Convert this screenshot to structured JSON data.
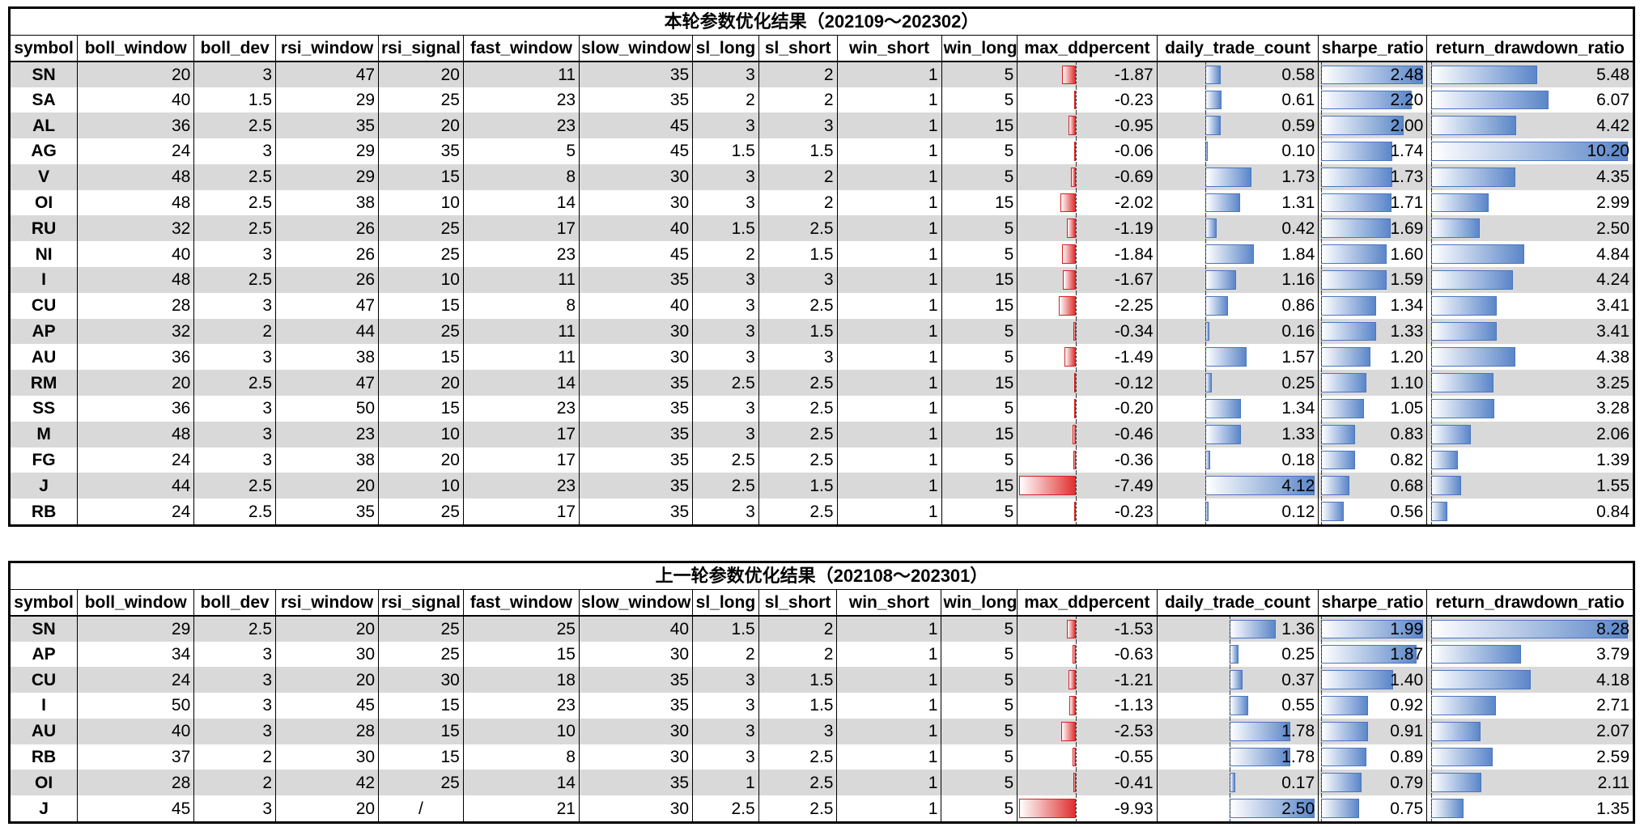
{
  "columns": [
    "symbol",
    "boll_window",
    "boll_dev",
    "rsi_window",
    "rsi_signal",
    "fast_window",
    "slow_window",
    "sl_long",
    "sl_short",
    "win_short",
    "win_long",
    "max_ddpercent",
    "daily_trade_count",
    "sharpe_ratio",
    "return_drawdown_ratio"
  ],
  "tables": [
    {
      "title": "本轮参数优化结果（202109～202302）",
      "rows": [
        [
          "SN",
          "20",
          "3",
          "47",
          "20",
          "11",
          "35",
          "3",
          "2",
          "1",
          "5",
          "-1.87",
          "0.58",
          "2.48",
          "5.48"
        ],
        [
          "SA",
          "40",
          "1.5",
          "29",
          "25",
          "23",
          "35",
          "2",
          "2",
          "1",
          "5",
          "-0.23",
          "0.61",
          "2.20",
          "6.07"
        ],
        [
          "AL",
          "36",
          "2.5",
          "35",
          "20",
          "23",
          "45",
          "3",
          "3",
          "1",
          "15",
          "-0.95",
          "0.59",
          "2.00",
          "4.42"
        ],
        [
          "AG",
          "24",
          "3",
          "29",
          "35",
          "5",
          "45",
          "1.5",
          "1.5",
          "1",
          "5",
          "-0.06",
          "0.10",
          "1.74",
          "10.20"
        ],
        [
          "V",
          "48",
          "2.5",
          "29",
          "15",
          "8",
          "30",
          "3",
          "2",
          "1",
          "5",
          "-0.69",
          "1.73",
          "1.73",
          "4.35"
        ],
        [
          "OI",
          "48",
          "2.5",
          "38",
          "10",
          "14",
          "30",
          "3",
          "2",
          "1",
          "15",
          "-2.02",
          "1.31",
          "1.71",
          "2.99"
        ],
        [
          "RU",
          "32",
          "2.5",
          "26",
          "25",
          "17",
          "40",
          "1.5",
          "2.5",
          "1",
          "5",
          "-1.19",
          "0.42",
          "1.69",
          "2.50"
        ],
        [
          "NI",
          "40",
          "3",
          "26",
          "25",
          "23",
          "45",
          "2",
          "1.5",
          "1",
          "5",
          "-1.84",
          "1.84",
          "1.60",
          "4.84"
        ],
        [
          "I",
          "48",
          "2.5",
          "26",
          "10",
          "11",
          "35",
          "3",
          "3",
          "1",
          "15",
          "-1.67",
          "1.16",
          "1.59",
          "4.24"
        ],
        [
          "CU",
          "28",
          "3",
          "47",
          "15",
          "8",
          "40",
          "3",
          "2.5",
          "1",
          "15",
          "-2.25",
          "0.86",
          "1.34",
          "3.41"
        ],
        [
          "AP",
          "32",
          "2",
          "44",
          "25",
          "11",
          "30",
          "3",
          "1.5",
          "1",
          "5",
          "-0.34",
          "0.16",
          "1.33",
          "3.41"
        ],
        [
          "AU",
          "36",
          "3",
          "38",
          "15",
          "11",
          "30",
          "3",
          "3",
          "1",
          "5",
          "-1.49",
          "1.57",
          "1.20",
          "4.38"
        ],
        [
          "RM",
          "20",
          "2.5",
          "47",
          "20",
          "14",
          "35",
          "2.5",
          "2.5",
          "1",
          "15",
          "-0.12",
          "0.25",
          "1.10",
          "3.25"
        ],
        [
          "SS",
          "36",
          "3",
          "50",
          "15",
          "23",
          "35",
          "3",
          "2.5",
          "1",
          "5",
          "-0.20",
          "1.34",
          "1.05",
          "3.28"
        ],
        [
          "M",
          "48",
          "3",
          "23",
          "10",
          "17",
          "35",
          "3",
          "2.5",
          "1",
          "15",
          "-0.46",
          "1.33",
          "0.83",
          "2.06"
        ],
        [
          "FG",
          "24",
          "3",
          "38",
          "20",
          "17",
          "35",
          "2.5",
          "2.5",
          "1",
          "5",
          "-0.36",
          "0.18",
          "0.82",
          "1.39"
        ],
        [
          "J",
          "44",
          "2.5",
          "20",
          "10",
          "23",
          "35",
          "2.5",
          "1.5",
          "1",
          "15",
          "-7.49",
          "4.12",
          "0.68",
          "1.55"
        ],
        [
          "RB",
          "24",
          "2.5",
          "35",
          "25",
          "17",
          "35",
          "3",
          "2.5",
          "1",
          "5",
          "-0.23",
          "0.12",
          "0.56",
          "0.84"
        ]
      ]
    },
    {
      "title": "上一轮参数优化结果（202108～202301）",
      "rows": [
        [
          "SN",
          "29",
          "2.5",
          "20",
          "25",
          "25",
          "40",
          "1.5",
          "2",
          "1",
          "5",
          "-1.53",
          "1.36",
          "1.99",
          "8.28"
        ],
        [
          "AP",
          "34",
          "3",
          "30",
          "25",
          "15",
          "30",
          "2",
          "2",
          "1",
          "5",
          "-0.63",
          "0.25",
          "1.87",
          "3.79"
        ],
        [
          "CU",
          "24",
          "3",
          "20",
          "30",
          "18",
          "35",
          "3",
          "1.5",
          "1",
          "5",
          "-1.21",
          "0.37",
          "1.40",
          "4.18"
        ],
        [
          "I",
          "50",
          "3",
          "45",
          "15",
          "23",
          "35",
          "3",
          "1.5",
          "1",
          "5",
          "-1.13",
          "0.55",
          "0.92",
          "2.71"
        ],
        [
          "AU",
          "40",
          "3",
          "28",
          "15",
          "10",
          "30",
          "3",
          "3",
          "1",
          "5",
          "-2.53",
          "1.78",
          "0.91",
          "2.07"
        ],
        [
          "RB",
          "37",
          "2",
          "30",
          "15",
          "8",
          "30",
          "3",
          "2.5",
          "1",
          "5",
          "-0.55",
          "1.78",
          "0.89",
          "2.59"
        ],
        [
          "OI",
          "28",
          "2",
          "42",
          "25",
          "14",
          "35",
          "1",
          "2.5",
          "1",
          "5",
          "-0.41",
          "0.17",
          "0.79",
          "2.11"
        ],
        [
          "J",
          "45",
          "3",
          "20",
          "/",
          "21",
          "30",
          "2.5",
          "2.5",
          "1",
          "5",
          "-9.93",
          "2.50",
          "0.75",
          "1.35"
        ]
      ]
    }
  ],
  "colors": {
    "negative_bar": "#e03030",
    "positive_bar": "#5b86c9",
    "row_shade": "#d9d9d9"
  }
}
